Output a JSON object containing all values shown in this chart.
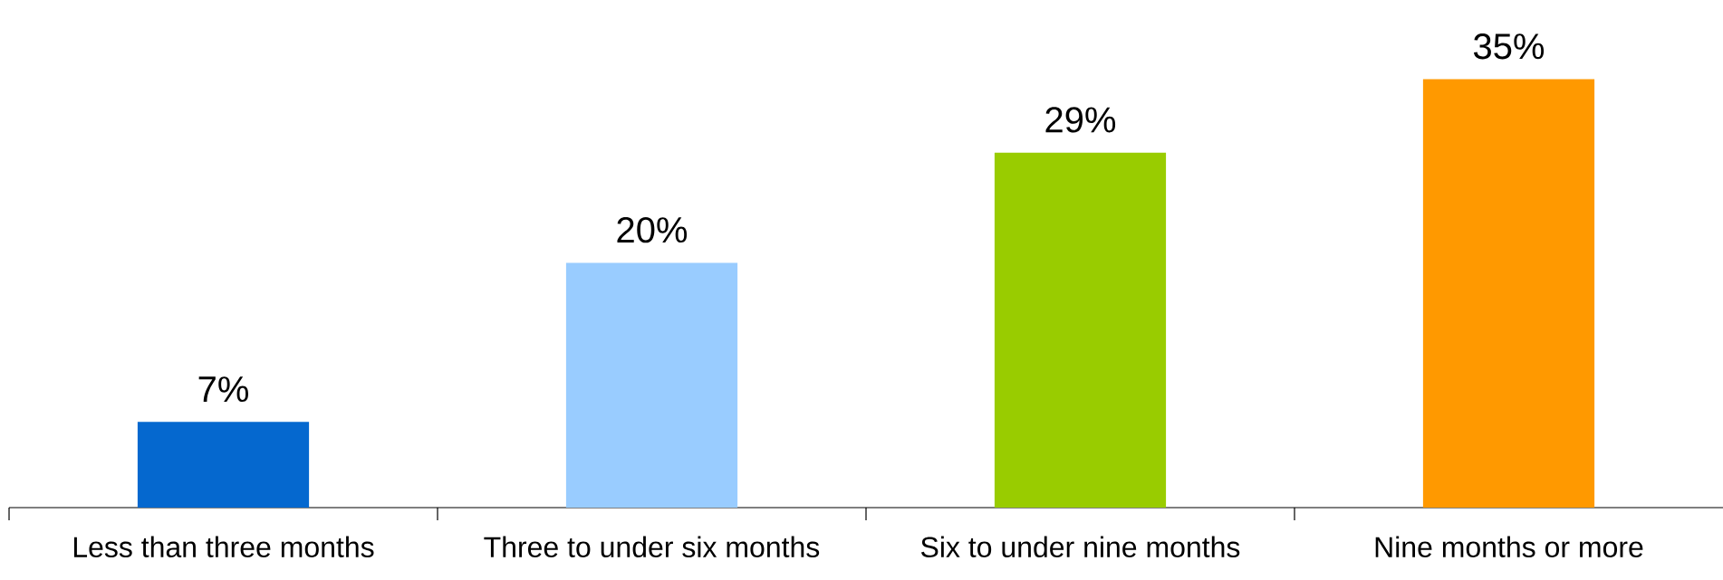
{
  "chart_data": {
    "type": "bar",
    "categories": [
      "Less than three months",
      "Three to under six months",
      "Six to under nine months",
      "Nine months or more"
    ],
    "values": [
      7,
      20,
      29,
      35
    ],
    "colors": [
      "#0568cf",
      "#99ccff",
      "#99cc00",
      "#ff9900"
    ],
    "value_labels": [
      "7%",
      "20%",
      "29%",
      "35%"
    ]
  }
}
